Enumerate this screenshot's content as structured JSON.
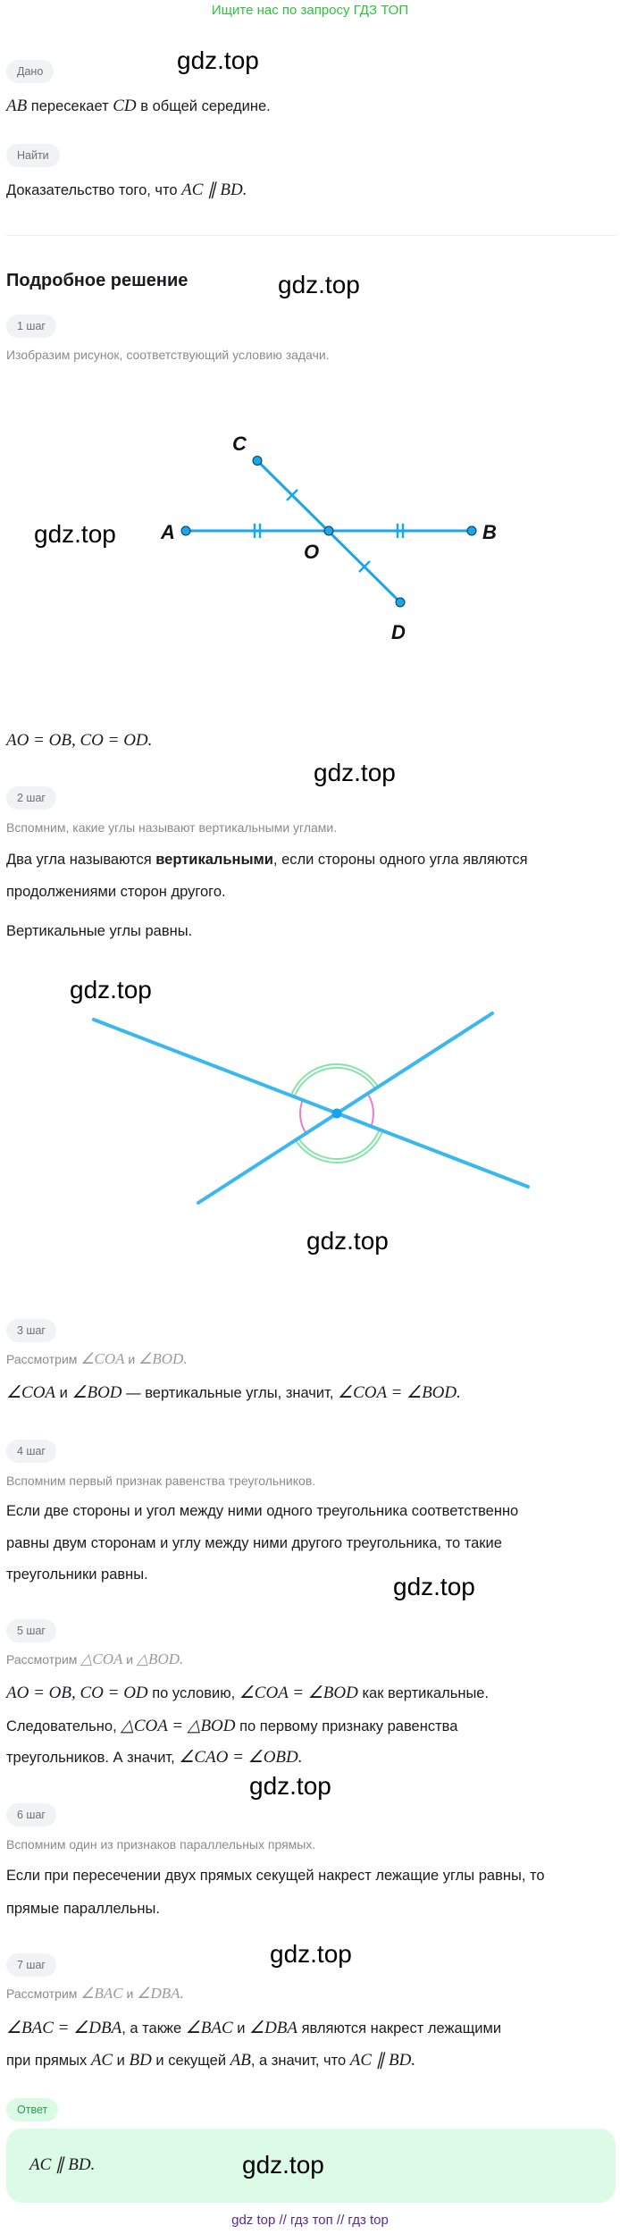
{
  "banner": "Ищите нас по запросу ГДЗ ТОП",
  "watermark": "gdz.top",
  "given": {
    "label": "Дано",
    "text": [
      [
        {
          "m": "AB"
        },
        {
          "t": " пересекает "
        },
        {
          "m": "CD"
        },
        {
          "t": " в общей середине."
        }
      ]
    ]
  },
  "find": {
    "label": "Найти",
    "text": [
      [
        {
          "t": "Доказательство того, что "
        },
        {
          "m": "AC ∥ BD."
        }
      ]
    ]
  },
  "solution": {
    "heading": "Подробное решение",
    "steps": [
      {
        "label": "1 шаг",
        "hint": [
          [
            {
              "t": "Изобразим рисунок, соответствующий условию задачи."
            }
          ]
        ],
        "text": [
          [
            {
              "m": "AO = OB,  CO = OD."
            }
          ]
        ]
      },
      {
        "label": "2 шаг",
        "hint": [
          [
            {
              "t": "Вспомним, какие углы называют вертикальными углами."
            }
          ]
        ],
        "text": [
          [
            {
              "t": "Два угла называются "
            },
            {
              "b": "вертикальными"
            },
            {
              "t": ", если стороны одного угла являются"
            }
          ],
          [
            {
              "t": "продолжениями сторон другого."
            }
          ],
          [
            {
              "t": "Вертикальные углы равны."
            }
          ]
        ]
      },
      {
        "label": "3 шаг",
        "hint": [
          [
            {
              "t": "Рассмотрим "
            },
            {
              "m": "∠COA"
            },
            {
              "t": " и "
            },
            {
              "m": "∠BOD."
            }
          ]
        ],
        "text": [
          [
            {
              "m": "∠COA"
            },
            {
              "t": " и "
            },
            {
              "m": "∠BOD"
            },
            {
              "t": " — вертикальные углы, значит, "
            },
            {
              "m": "∠COA = ∠BOD."
            }
          ]
        ]
      },
      {
        "label": "4 шаг",
        "hint": [
          [
            {
              "t": "Вспомним первый признак равенства треугольников."
            }
          ]
        ],
        "text": [
          [
            {
              "t": "Если две стороны и угол между ними одного треугольника соответственно"
            }
          ],
          [
            {
              "t": "равны двум сторонам и углу между ними другого треугольника, то такие"
            }
          ],
          [
            {
              "t": "треугольники равны."
            }
          ]
        ]
      },
      {
        "label": "5 шаг",
        "hint": [
          [
            {
              "t": "Рассмотрим "
            },
            {
              "m": "△COA"
            },
            {
              "t": " и "
            },
            {
              "m": "△BOD."
            }
          ]
        ],
        "text": [
          [
            {
              "m": "AO = OB,  CO = OD"
            },
            {
              "t": " по условию, "
            },
            {
              "m": "∠COA = ∠BOD"
            },
            {
              "t": " как вертикальные."
            }
          ],
          [
            {
              "t": "Следовательно, "
            },
            {
              "m": "△COA = △BOD"
            },
            {
              "t": " по первому признаку равенства"
            }
          ],
          [
            {
              "t": "треугольников. А значит, "
            },
            {
              "m": "∠CAO = ∠OBD."
            }
          ]
        ]
      },
      {
        "label": "6 шаг",
        "hint": [
          [
            {
              "t": "Вспомним один из признаков параллельных прямых."
            }
          ]
        ],
        "text": [
          [
            {
              "t": "Если при пересечении двух прямых секущей накрест лежащие углы равны, то"
            }
          ],
          [
            {
              "t": "прямые параллельны."
            }
          ]
        ]
      },
      {
        "label": "7 шаг",
        "hint": [
          [
            {
              "t": "Рассмотрим "
            },
            {
              "m": "∠BAC"
            },
            {
              "t": " и "
            },
            {
              "m": "∠DBA."
            }
          ]
        ],
        "text": [
          [
            {
              "m": "∠BAC = ∠DBA"
            },
            {
              "t": ", а также "
            },
            {
              "m": "∠BAC"
            },
            {
              "t": " и "
            },
            {
              "m": "∠DBA"
            },
            {
              "t": " являются накрест лежащими"
            }
          ],
          [
            {
              "t": "при прямых "
            },
            {
              "m": "AC"
            },
            {
              "t": " и "
            },
            {
              "m": "BD"
            },
            {
              "t": " и секущей "
            },
            {
              "m": "AB"
            },
            {
              "t": ", а значит, что "
            },
            {
              "m": "AC ∥ BD."
            }
          ]
        ]
      }
    ]
  },
  "figure1": {
    "labels": {
      "A": "A",
      "B": "B",
      "C": "C",
      "D": "D",
      "O": "O"
    },
    "line_color": "#1aa6e8"
  },
  "figure2": {
    "line_color": "#3ab7f0",
    "arc_green": "#86e3a8",
    "arc_pink": "#f07cc0"
  },
  "answer": {
    "label": "Ответ",
    "text": [
      [
        {
          "m": "AC ∥ BD."
        }
      ]
    ]
  },
  "footer": "gdz top  //  гдз топ  //  гдз top"
}
